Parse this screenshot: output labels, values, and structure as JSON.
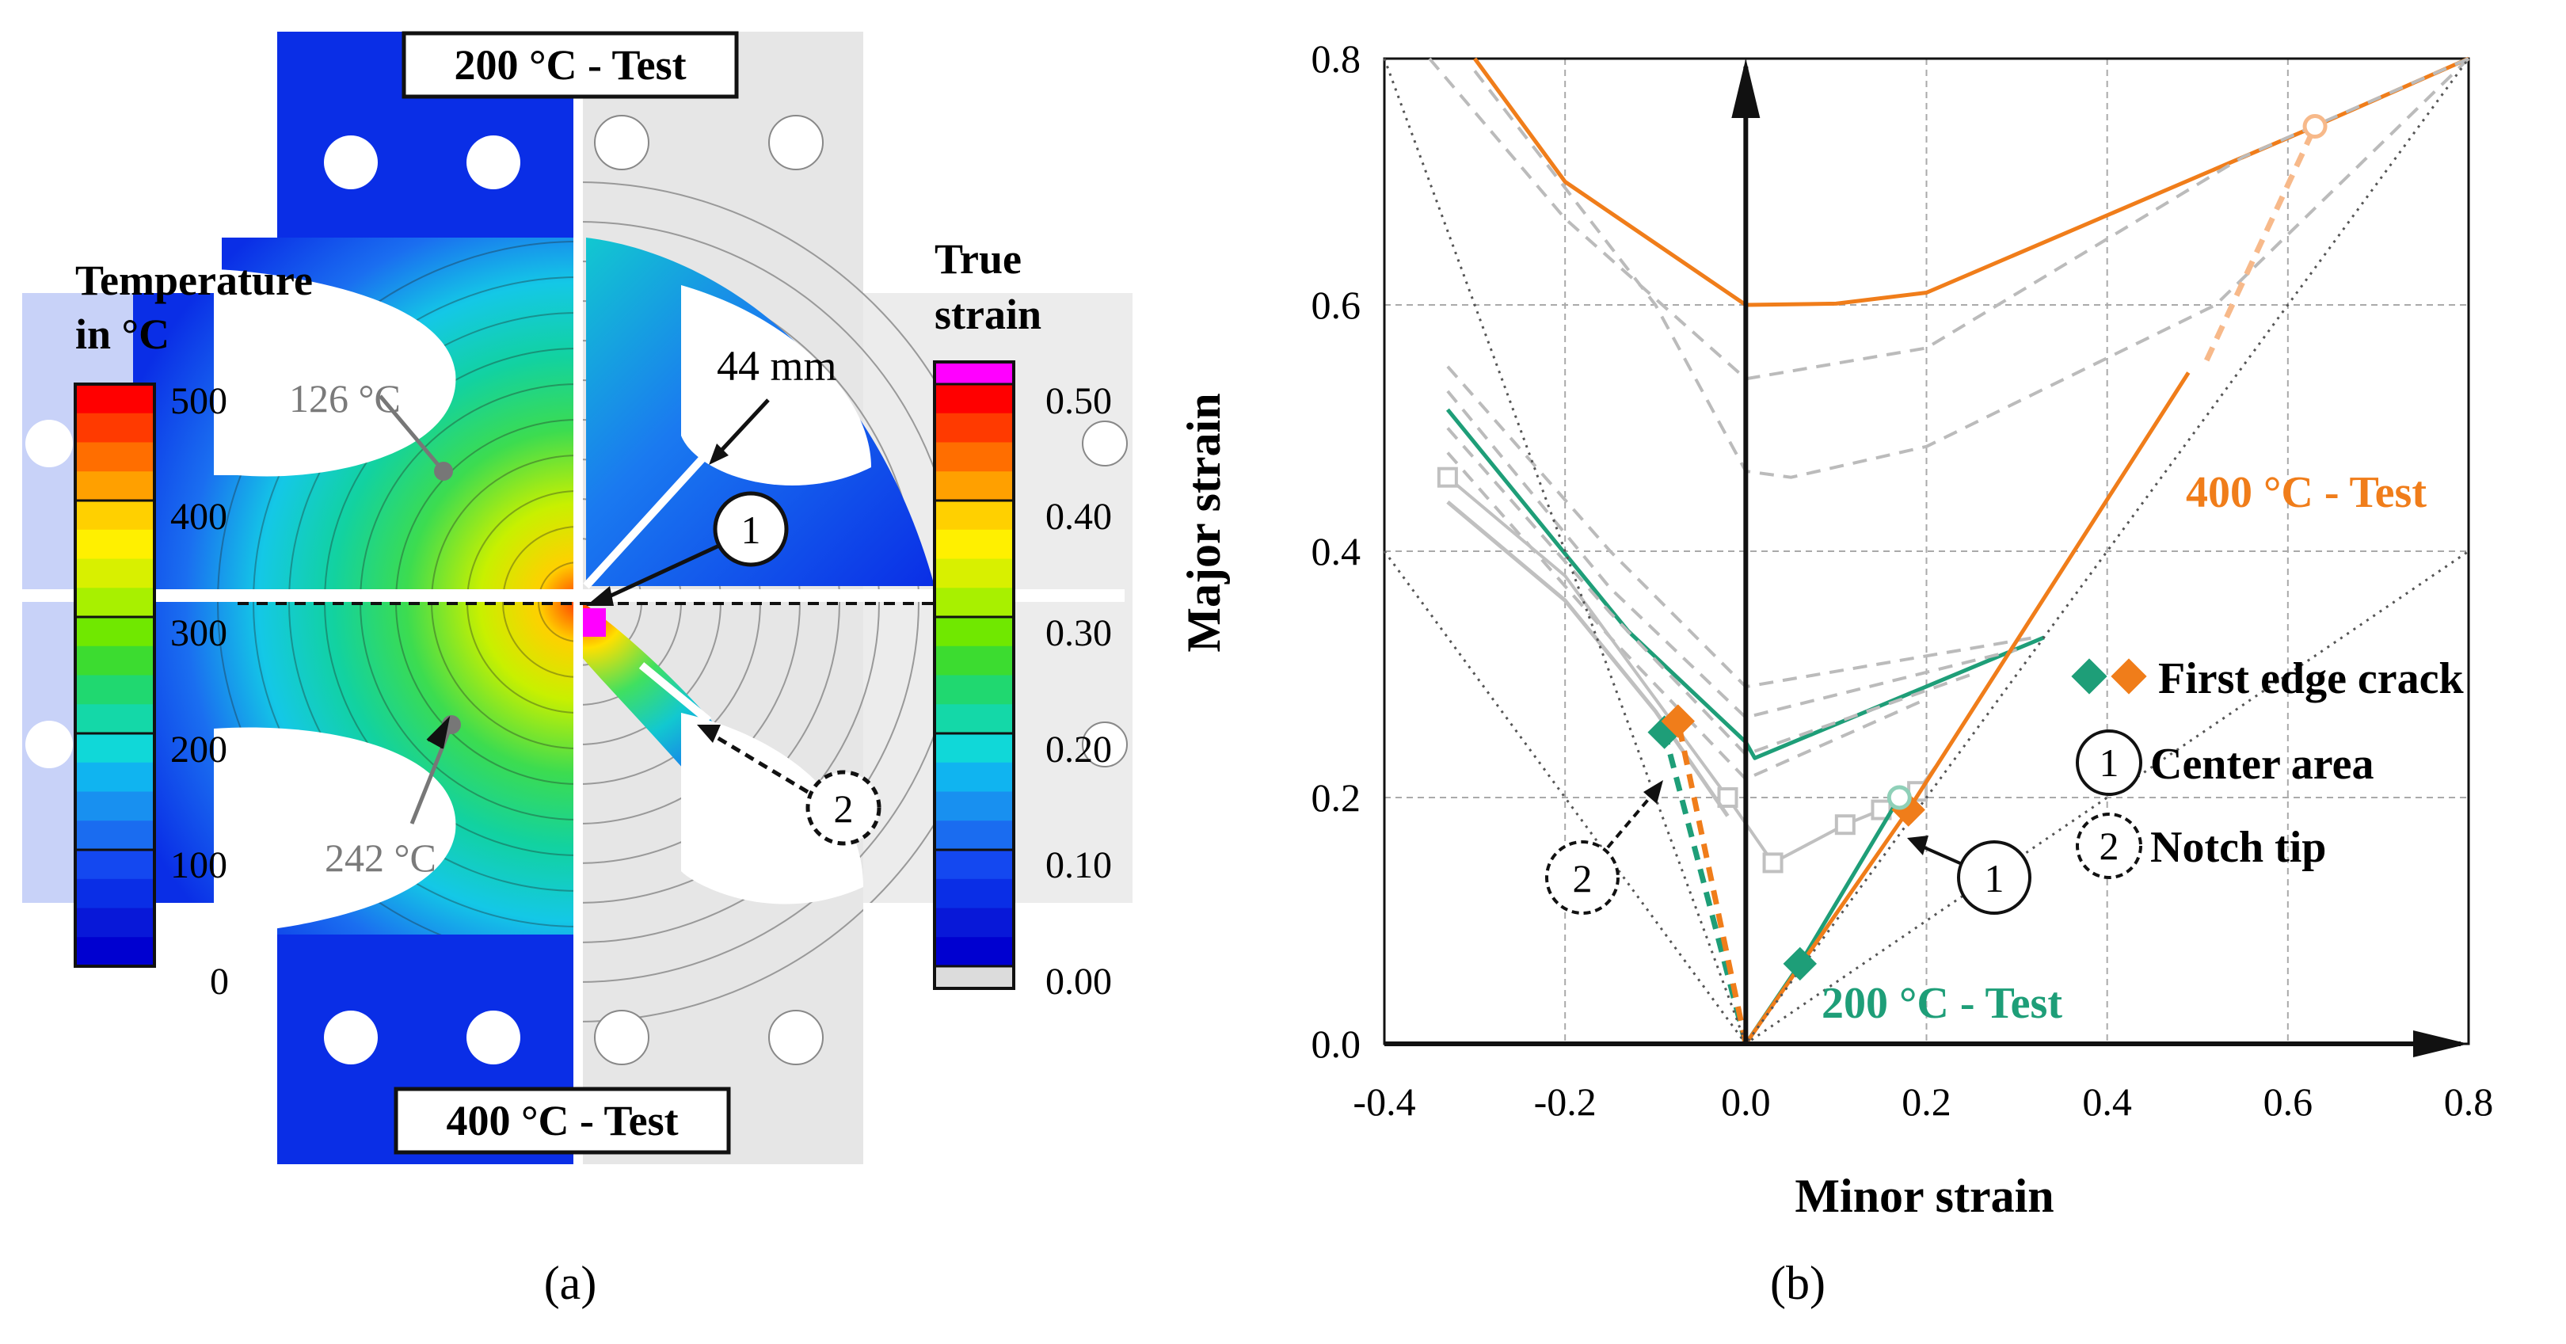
{
  "panel_a": {
    "caption": "(a)",
    "top_label": "200 °C - Test",
    "bottom_label": "400 °C - Test",
    "temperature_legend": {
      "title_line1": "Temperature",
      "title_line2": "in °C",
      "ticks": [
        "500",
        "400",
        "300",
        "200",
        "100",
        "0"
      ]
    },
    "strain_legend": {
      "title_line1": "True",
      "title_line2": "strain",
      "ticks": [
        "0.50",
        "0.40",
        "0.30",
        "0.20",
        "0.10",
        "0.00"
      ]
    },
    "annotations": {
      "temp_upper": "126 °C",
      "temp_lower": "242 °C",
      "distance": "44 mm",
      "marker_1": "1",
      "marker_2": "2"
    },
    "colors": {
      "blue": "#0a2ee6",
      "gray_specimen": "#e6e6e6"
    }
  },
  "chart_data": {
    "type": "line",
    "caption": "(b)",
    "xlabel": "Minor strain",
    "ylabel": "Major strain",
    "xlim": [
      -0.4,
      0.8
    ],
    "ylim": [
      0.0,
      0.8
    ],
    "xticks": [
      "-0.4",
      "-0.2",
      "0.0",
      "0.2",
      "0.4",
      "0.6",
      "0.8"
    ],
    "yticks": [
      "0.0",
      "0.2",
      "0.4",
      "0.6",
      "0.8"
    ],
    "grid": true,
    "series": [
      {
        "name": "FLC 400 °C",
        "style": "solid",
        "color": "#f07d1a",
        "points": [
          [
            -0.3,
            0.8
          ],
          [
            -0.2,
            0.7
          ],
          [
            0.0,
            0.6
          ],
          [
            0.1,
            0.601
          ],
          [
            0.2,
            0.61
          ],
          [
            0.63,
            0.745
          ],
          [
            0.8,
            0.8
          ]
        ]
      },
      {
        "name": "FLC 200 °C",
        "style": "solid",
        "color": "#1e9e78",
        "points": [
          [
            -0.33,
            0.515
          ],
          [
            -0.13,
            0.335
          ],
          [
            0.0,
            0.245
          ],
          [
            0.01,
            0.232
          ],
          [
            0.33,
            0.33
          ]
        ]
      },
      {
        "name": "Gray FLC 1",
        "style": "dashed",
        "color": "#bbbbbb",
        "points": [
          [
            -0.35,
            0.8
          ],
          [
            -0.2,
            0.67
          ],
          [
            0.0,
            0.54
          ],
          [
            0.2,
            0.565
          ],
          [
            0.55,
            0.72
          ],
          [
            0.8,
            0.8
          ]
        ]
      },
      {
        "name": "Gray FLC 2",
        "style": "dashed",
        "color": "#bbbbbb",
        "points": [
          [
            -0.3,
            0.79
          ],
          [
            -0.1,
            0.6
          ],
          [
            0.0,
            0.465
          ],
          [
            0.05,
            0.46
          ],
          [
            0.2,
            0.485
          ],
          [
            0.52,
            0.6
          ],
          [
            0.8,
            0.8
          ]
        ]
      },
      {
        "name": "Gray FLC 3",
        "style": "dashed",
        "color": "#bbbbbb",
        "points": [
          [
            -0.33,
            0.55
          ],
          [
            -0.15,
            0.4
          ],
          [
            0.0,
            0.29
          ],
          [
            0.32,
            0.33
          ]
        ]
      },
      {
        "name": "Gray FLC 4",
        "style": "dashed",
        "color": "#bbbbbb",
        "points": [
          [
            -0.33,
            0.53
          ],
          [
            -0.15,
            0.37
          ],
          [
            0.0,
            0.265
          ],
          [
            0.3,
            0.32
          ]
        ]
      },
      {
        "name": "Gray FLC 5",
        "style": "dashed",
        "color": "#bbbbbb",
        "points": [
          [
            -0.33,
            0.5
          ],
          [
            -0.15,
            0.35
          ],
          [
            0.0,
            0.235
          ],
          [
            0.25,
            0.3
          ]
        ]
      },
      {
        "name": "Gray FLC 6",
        "style": "dashed",
        "color": "#bbbbbb",
        "points": [
          [
            -0.33,
            0.48
          ],
          [
            -0.15,
            0.33
          ],
          [
            0.0,
            0.215
          ],
          [
            0.2,
            0.28
          ]
        ]
      },
      {
        "name": "Gray measured",
        "style": "solid-markers",
        "color": "#c0c0c0",
        "points": [
          [
            -0.33,
            0.46
          ],
          [
            -0.2,
            0.38
          ],
          [
            -0.1,
            0.28
          ],
          [
            -0.02,
            0.2
          ],
          [
            0.03,
            0.147
          ],
          [
            0.11,
            0.178
          ],
          [
            0.15,
            0.19
          ],
          [
            0.19,
            0.205
          ],
          [
            0.21,
            0.225
          ]
        ]
      },
      {
        "name": "Gray measured 2",
        "style": "solid",
        "color": "#c0c0c0",
        "points": [
          [
            -0.33,
            0.44
          ],
          [
            -0.2,
            0.36
          ],
          [
            -0.1,
            0.27
          ],
          [
            -0.02,
            0.185
          ]
        ]
      },
      {
        "name": "Center area 200 °C path",
        "style": "solid",
        "color": "#1e9e78",
        "points": [
          [
            0.0,
            0.0
          ],
          [
            0.06,
            0.065
          ],
          [
            0.17,
            0.2
          ]
        ]
      },
      {
        "name": "Center area 400 °C path",
        "style": "solid",
        "color": "#f07d1a",
        "points": [
          [
            0.0,
            0.0
          ],
          [
            0.18,
            0.19
          ],
          [
            0.49,
            0.545
          ]
        ]
      },
      {
        "name": "Center area 400 °C extrapolation",
        "style": "dashed",
        "color": "#f7b98a",
        "points": [
          [
            0.51,
            0.555
          ],
          [
            0.63,
            0.745
          ]
        ]
      },
      {
        "name": "Notch tip 200 °C",
        "style": "dashed",
        "color": "#1e9e78",
        "points": [
          [
            0.0,
            0.0
          ],
          [
            -0.09,
            0.253
          ]
        ]
      },
      {
        "name": "Notch tip 400 °C",
        "style": "dashed",
        "color": "#f07d1a",
        "points": [
          [
            0.0,
            0.0
          ],
          [
            -0.075,
            0.262
          ]
        ]
      },
      {
        "name": "Reference 1",
        "style": "dotted",
        "color": "#555555",
        "points": [
          [
            -0.4,
            0.8
          ],
          [
            0.0,
            0.0
          ],
          [
            0.8,
            0.8
          ]
        ]
      },
      {
        "name": "Reference 2",
        "style": "dotted",
        "color": "#555555",
        "points": [
          [
            -0.4,
            0.4
          ],
          [
            0.0,
            0.0
          ],
          [
            0.8,
            0.4
          ]
        ]
      }
    ],
    "first_edge_crack_points": [
      {
        "x": -0.09,
        "y": 0.253,
        "color": "#1e9e78"
      },
      {
        "x": -0.075,
        "y": 0.262,
        "color": "#f07d1a"
      },
      {
        "x": 0.06,
        "y": 0.065,
        "color": "#1e9e78"
      },
      {
        "x": 0.18,
        "y": 0.19,
        "color": "#f07d1a"
      }
    ],
    "open_circle_points": [
      {
        "x": 0.17,
        "y": 0.2,
        "color": "#8fd0b8"
      },
      {
        "x": 0.63,
        "y": 0.745,
        "color": "#f7b98a"
      }
    ],
    "labels": {
      "test_400": "400 °C - Test",
      "test_200": "200 °C - Test",
      "legend_first_edge": "First edge crack",
      "legend_center": "Center area",
      "legend_notch": "Notch tip",
      "marker_1": "1",
      "marker_2": "2"
    },
    "colors": {
      "orange": "#f07d1a",
      "green": "#1e9e78"
    }
  }
}
